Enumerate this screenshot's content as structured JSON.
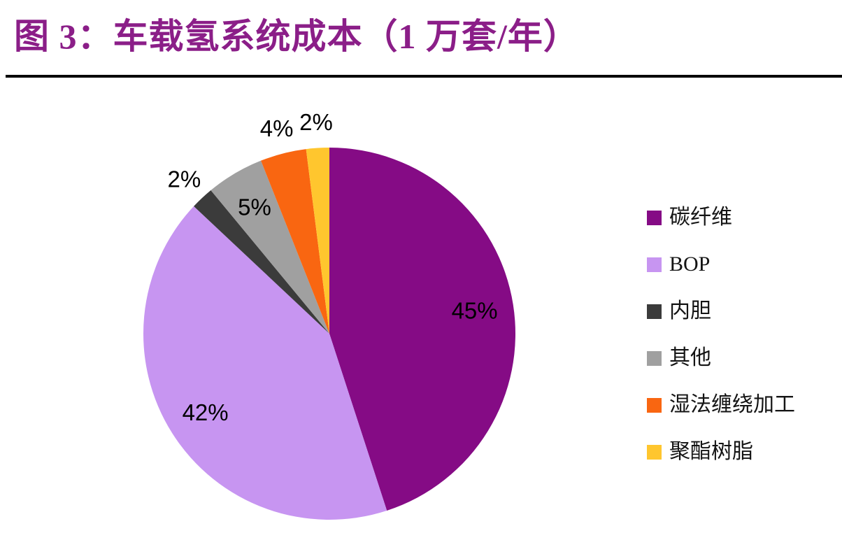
{
  "figure": {
    "title": "图 3：车载氢系统成本（1 万套/年）",
    "title_color": "#8B1E88",
    "rule_color": "#000000"
  },
  "chart_data": {
    "type": "pie",
    "title": "车载氢系统成本（1 万套/年）",
    "direction": "clockwise",
    "start_angle_deg": 0,
    "legend_position": "right",
    "data_label_format": "percent",
    "slices": [
      {
        "label": "碳纤维",
        "value": 45,
        "data_label": "45%",
        "color": "#850B85",
        "label_placement": "inside"
      },
      {
        "label": "BOP",
        "value": 42,
        "data_label": "42%",
        "color": "#C795F1",
        "label_placement": "inside"
      },
      {
        "label": "内胆",
        "value": 2,
        "data_label": "2%",
        "color": "#3B3B3B",
        "label_placement": "outside"
      },
      {
        "label": "其他",
        "value": 5,
        "data_label": "5%",
        "color": "#A0A0A0",
        "label_placement": "inside"
      },
      {
        "label": "湿法缠绕加工",
        "value": 4,
        "data_label": "4%",
        "color": "#F96611",
        "label_placement": "outside"
      },
      {
        "label": "聚酯树脂",
        "value": 2,
        "data_label": "2%",
        "color": "#FFC62E",
        "label_placement": "outside"
      }
    ]
  }
}
